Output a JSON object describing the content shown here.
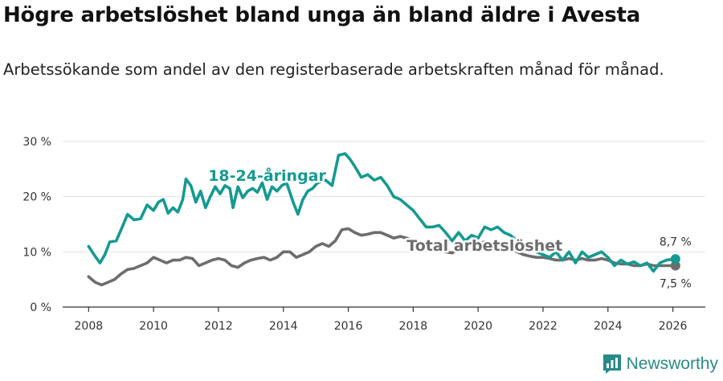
{
  "title": "Högre arbetslöshet bland unga än bland äldre i Avesta",
  "subtitle": "Arbetssökande som andel av den registerbaserade arbetskraften månad för månad.",
  "brand": "Newsworthy",
  "colors": {
    "youth": "#159a92",
    "total": "#6d6d6d",
    "grid": "#e2e2e2",
    "axis": "#333333"
  },
  "chart_data": {
    "type": "line",
    "title": "",
    "xlabel": "",
    "ylabel": "",
    "xlim": [
      2007.2,
      2027.0
    ],
    "ylim": [
      0,
      30
    ],
    "xticks": [
      2008,
      2010,
      2012,
      2014,
      2016,
      2018,
      2020,
      2022,
      2024,
      2026
    ],
    "xtick_labels": [
      "2008",
      "2010",
      "2012",
      "2014",
      "2016",
      "2018",
      "2020",
      "2022",
      "2024",
      "2026"
    ],
    "yticks": [
      0,
      10,
      20,
      30
    ],
    "ytick_labels": [
      "0 %",
      "10 %",
      "20 %",
      "30 %"
    ],
    "grid": true,
    "series": [
      {
        "name": "18-24-åringar",
        "color": "#159a92",
        "end_label": "8,7 %",
        "points": [
          [
            2008.0,
            11.0
          ],
          [
            2008.2,
            9.2
          ],
          [
            2008.35,
            8.0
          ],
          [
            2008.5,
            9.5
          ],
          [
            2008.65,
            11.8
          ],
          [
            2008.85,
            12.0
          ],
          [
            2009.0,
            14.0
          ],
          [
            2009.2,
            16.8
          ],
          [
            2009.4,
            15.8
          ],
          [
            2009.6,
            16.0
          ],
          [
            2009.8,
            18.5
          ],
          [
            2010.0,
            17.5
          ],
          [
            2010.15,
            19.0
          ],
          [
            2010.3,
            19.5
          ],
          [
            2010.45,
            17.0
          ],
          [
            2010.6,
            18.0
          ],
          [
            2010.75,
            17.2
          ],
          [
            2010.9,
            19.5
          ],
          [
            2011.0,
            23.2
          ],
          [
            2011.15,
            22.0
          ],
          [
            2011.3,
            19.0
          ],
          [
            2011.45,
            21.0
          ],
          [
            2011.6,
            18.0
          ],
          [
            2011.75,
            20.0
          ],
          [
            2011.9,
            21.8
          ],
          [
            2012.05,
            20.5
          ],
          [
            2012.2,
            22.0
          ],
          [
            2012.35,
            21.5
          ],
          [
            2012.45,
            18.0
          ],
          [
            2012.6,
            21.8
          ],
          [
            2012.75,
            19.8
          ],
          [
            2012.9,
            21.0
          ],
          [
            2013.05,
            21.5
          ],
          [
            2013.2,
            20.8
          ],
          [
            2013.35,
            22.5
          ],
          [
            2013.5,
            19.5
          ],
          [
            2013.65,
            21.8
          ],
          [
            2013.8,
            21.0
          ],
          [
            2013.95,
            22.0
          ],
          [
            2014.1,
            22.5
          ],
          [
            2014.3,
            19.0
          ],
          [
            2014.45,
            16.8
          ],
          [
            2014.6,
            19.5
          ],
          [
            2014.75,
            21.0
          ],
          [
            2014.9,
            21.5
          ],
          [
            2015.05,
            22.5
          ],
          [
            2015.3,
            23.0
          ],
          [
            2015.5,
            22.0
          ],
          [
            2015.7,
            27.5
          ],
          [
            2015.9,
            27.8
          ],
          [
            2016.05,
            26.8
          ],
          [
            2016.2,
            25.5
          ],
          [
            2016.4,
            23.5
          ],
          [
            2016.6,
            24.0
          ],
          [
            2016.8,
            23.0
          ],
          [
            2017.0,
            23.5
          ],
          [
            2017.2,
            22.0
          ],
          [
            2017.4,
            20.0
          ],
          [
            2017.6,
            19.5
          ],
          [
            2017.8,
            18.5
          ],
          [
            2018.0,
            17.5
          ],
          [
            2018.2,
            16.0
          ],
          [
            2018.4,
            14.5
          ],
          [
            2018.6,
            14.5
          ],
          [
            2018.8,
            14.8
          ],
          [
            2019.0,
            13.5
          ],
          [
            2019.2,
            12.0
          ],
          [
            2019.4,
            13.5
          ],
          [
            2019.6,
            12.0
          ],
          [
            2019.8,
            13.0
          ],
          [
            2020.0,
            12.5
          ],
          [
            2020.2,
            14.5
          ],
          [
            2020.4,
            14.0
          ],
          [
            2020.6,
            14.5
          ],
          [
            2020.8,
            13.5
          ],
          [
            2021.0,
            13.0
          ],
          [
            2021.2,
            12.0
          ],
          [
            2021.4,
            11.5
          ],
          [
            2021.6,
            11.0
          ],
          [
            2021.8,
            10.0
          ],
          [
            2022.0,
            9.5
          ],
          [
            2022.2,
            9.0
          ],
          [
            2022.4,
            10.0
          ],
          [
            2022.6,
            8.5
          ],
          [
            2022.8,
            10.0
          ],
          [
            2023.0,
            8.0
          ],
          [
            2023.2,
            10.0
          ],
          [
            2023.4,
            9.0
          ],
          [
            2023.6,
            9.5
          ],
          [
            2023.8,
            10.0
          ],
          [
            2024.0,
            9.0
          ],
          [
            2024.2,
            7.5
          ],
          [
            2024.4,
            8.5
          ],
          [
            2024.6,
            7.8
          ],
          [
            2024.8,
            8.2
          ],
          [
            2025.0,
            7.5
          ],
          [
            2025.2,
            8.0
          ],
          [
            2025.4,
            6.5
          ],
          [
            2025.6,
            8.0
          ],
          [
            2025.8,
            8.5
          ],
          [
            2026.08,
            8.7
          ]
        ]
      },
      {
        "name": "Total arbetslöshet",
        "color": "#6d6d6d",
        "end_label": "7,5 %",
        "points": [
          [
            2008.0,
            5.5
          ],
          [
            2008.2,
            4.5
          ],
          [
            2008.4,
            4.0
          ],
          [
            2008.6,
            4.5
          ],
          [
            2008.8,
            5.0
          ],
          [
            2009.0,
            6.0
          ],
          [
            2009.2,
            6.8
          ],
          [
            2009.4,
            7.0
          ],
          [
            2009.6,
            7.5
          ],
          [
            2009.8,
            8.0
          ],
          [
            2010.0,
            9.0
          ],
          [
            2010.2,
            8.5
          ],
          [
            2010.4,
            8.0
          ],
          [
            2010.6,
            8.5
          ],
          [
            2010.8,
            8.5
          ],
          [
            2011.0,
            9.0
          ],
          [
            2011.2,
            8.8
          ],
          [
            2011.4,
            7.5
          ],
          [
            2011.6,
            8.0
          ],
          [
            2011.8,
            8.5
          ],
          [
            2012.0,
            8.8
          ],
          [
            2012.2,
            8.5
          ],
          [
            2012.4,
            7.5
          ],
          [
            2012.6,
            7.2
          ],
          [
            2012.8,
            8.0
          ],
          [
            2013.0,
            8.5
          ],
          [
            2013.2,
            8.8
          ],
          [
            2013.4,
            9.0
          ],
          [
            2013.6,
            8.5
          ],
          [
            2013.8,
            9.0
          ],
          [
            2014.0,
            10.0
          ],
          [
            2014.2,
            10.0
          ],
          [
            2014.4,
            9.0
          ],
          [
            2014.6,
            9.5
          ],
          [
            2014.8,
            10.0
          ],
          [
            2015.0,
            11.0
          ],
          [
            2015.2,
            11.5
          ],
          [
            2015.4,
            11.0
          ],
          [
            2015.6,
            12.0
          ],
          [
            2015.8,
            14.0
          ],
          [
            2016.0,
            14.2
          ],
          [
            2016.2,
            13.5
          ],
          [
            2016.4,
            13.0
          ],
          [
            2016.6,
            13.2
          ],
          [
            2016.8,
            13.5
          ],
          [
            2017.0,
            13.5
          ],
          [
            2017.2,
            13.0
          ],
          [
            2017.4,
            12.5
          ],
          [
            2017.6,
            12.8
          ],
          [
            2017.8,
            12.5
          ],
          [
            2018.0,
            12.0
          ],
          [
            2018.2,
            11.8
          ],
          [
            2018.4,
            11.0
          ],
          [
            2018.6,
            10.5
          ],
          [
            2018.8,
            10.5
          ],
          [
            2019.0,
            10.0
          ],
          [
            2019.2,
            9.8
          ],
          [
            2019.4,
            10.5
          ],
          [
            2019.6,
            11.0
          ],
          [
            2019.8,
            11.5
          ],
          [
            2020.0,
            11.5
          ],
          [
            2020.2,
            11.8
          ],
          [
            2020.4,
            11.5
          ],
          [
            2020.6,
            11.0
          ],
          [
            2020.8,
            10.5
          ],
          [
            2021.0,
            10.5
          ],
          [
            2021.2,
            10.0
          ],
          [
            2021.4,
            9.5
          ],
          [
            2021.6,
            9.2
          ],
          [
            2021.8,
            9.0
          ],
          [
            2022.0,
            9.0
          ],
          [
            2022.2,
            8.8
          ],
          [
            2022.4,
            8.5
          ],
          [
            2022.6,
            8.5
          ],
          [
            2022.8,
            8.8
          ],
          [
            2023.0,
            8.5
          ],
          [
            2023.2,
            8.8
          ],
          [
            2023.4,
            8.5
          ],
          [
            2023.6,
            8.5
          ],
          [
            2023.8,
            8.8
          ],
          [
            2024.0,
            8.5
          ],
          [
            2024.2,
            8.0
          ],
          [
            2024.4,
            7.8
          ],
          [
            2024.6,
            7.8
          ],
          [
            2024.8,
            7.5
          ],
          [
            2025.0,
            7.5
          ],
          [
            2025.2,
            7.8
          ],
          [
            2025.4,
            7.5
          ],
          [
            2025.6,
            7.5
          ],
          [
            2025.8,
            7.5
          ],
          [
            2026.08,
            7.5
          ]
        ]
      }
    ],
    "annotations": [
      {
        "text": "18-24-åringar",
        "series": 0,
        "at_x": 2013.5,
        "at_y": 22.9
      },
      {
        "text": "Total arbetslöshet",
        "series": 1,
        "at_x": 2020.2,
        "at_y": 10.2
      }
    ]
  }
}
